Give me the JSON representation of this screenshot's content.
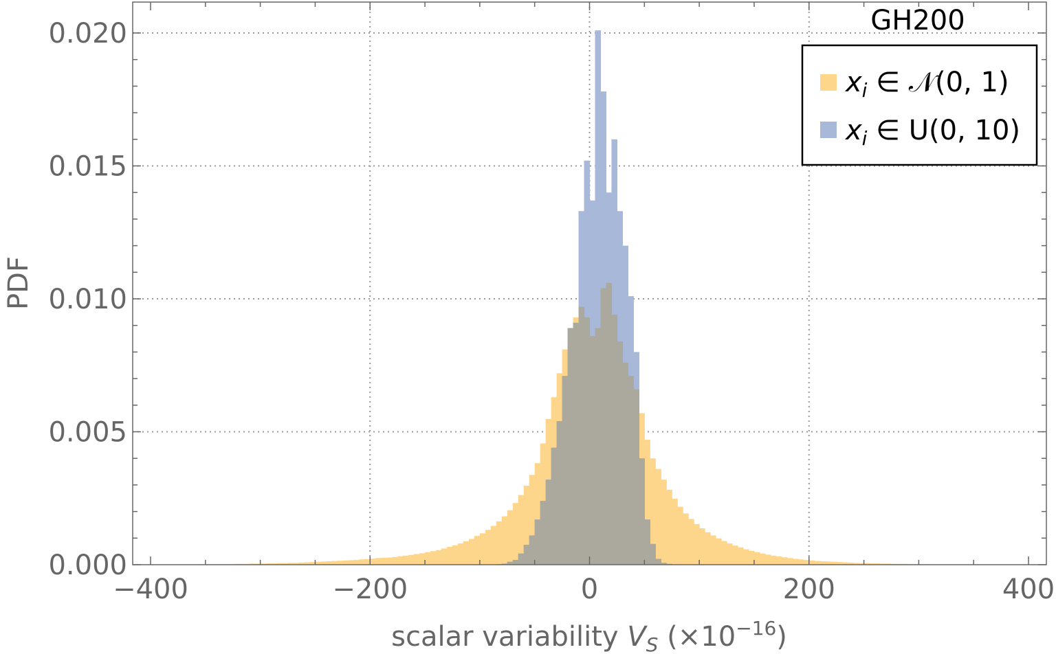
{
  "chart_data": {
    "type": "bar",
    "title": "GH200",
    "xlabel": {
      "prefix": "scalar variability ",
      "var": "V",
      "sub": "S",
      "unit_open": " (×10",
      "exp": "−16",
      "unit_close": ")"
    },
    "ylabel": "PDF",
    "xlim": [
      -400,
      400
    ],
    "ylim": [
      0,
      0.02
    ],
    "xticks": [
      -400,
      -200,
      0,
      200,
      400
    ],
    "xtick_labels": [
      "−400",
      "−200",
      "0",
      "200",
      "400"
    ],
    "yticks": [
      0,
      0.005,
      0.01,
      0.015,
      0.02
    ],
    "ytick_labels": [
      "0.000",
      "0.005",
      "0.010",
      "0.015",
      "0.020"
    ],
    "grid": true,
    "legend_position": "top-right",
    "bin_width": 5,
    "series": [
      {
        "name": "x_i ∈ 𝒩(0, 1)",
        "legend": {
          "var": "x",
          "sub": "i",
          "rest": " ∈ 𝒩(0, 1)"
        },
        "color": "#fdd68c",
        "bins_x": [
          -395,
          -390,
          -385,
          -380,
          -375,
          -370,
          -365,
          -360,
          -355,
          -350,
          -345,
          -340,
          -335,
          -330,
          -325,
          -320,
          -315,
          -310,
          -305,
          -300,
          -295,
          -290,
          -285,
          -280,
          -275,
          -270,
          -265,
          -260,
          -255,
          -250,
          -245,
          -240,
          -235,
          -230,
          -225,
          -220,
          -215,
          -210,
          -205,
          -200,
          -195,
          -190,
          -185,
          -180,
          -175,
          -170,
          -165,
          -160,
          -155,
          -150,
          -145,
          -140,
          -135,
          -130,
          -125,
          -120,
          -115,
          -110,
          -105,
          -100,
          -95,
          -90,
          -85,
          -80,
          -75,
          -70,
          -65,
          -60,
          -55,
          -50,
          -45,
          -40,
          -35,
          -30,
          -25,
          -20,
          -15,
          -10,
          -5,
          0,
          5,
          10,
          15,
          20,
          25,
          30,
          35,
          40,
          45,
          50,
          55,
          60,
          65,
          70,
          75,
          80,
          85,
          90,
          95,
          100,
          105,
          110,
          115,
          120,
          125,
          130,
          135,
          140,
          145,
          150,
          155,
          160,
          165,
          170,
          175,
          180,
          185,
          190,
          195,
          200,
          205,
          210,
          215,
          220,
          225,
          230,
          235,
          240,
          245,
          250,
          255,
          260,
          265,
          270,
          275,
          280,
          285,
          290,
          295,
          300,
          305
        ],
        "values": [
          1e-05,
          1e-05,
          1e-05,
          1e-05,
          1e-05,
          1e-05,
          1e-05,
          1e-05,
          2e-05,
          2e-05,
          2e-05,
          2e-05,
          2e-05,
          2e-05,
          3e-05,
          3e-05,
          3e-05,
          4e-05,
          4e-05,
          4e-05,
          5e-05,
          5e-05,
          6e-05,
          6e-05,
          7e-05,
          7e-05,
          8e-05,
          9e-05,
          0.0001,
          0.00011,
          0.00012,
          0.00013,
          0.00014,
          0.00015,
          0.00016,
          0.00017,
          0.00018,
          0.0002,
          0.00021,
          0.00023,
          0.00025,
          0.00026,
          0.00027,
          0.00029,
          0.00032,
          0.00034,
          0.00037,
          0.0004,
          0.00043,
          0.00047,
          0.00051,
          0.00055,
          0.00061,
          0.00067,
          0.00073,
          0.0008,
          0.00088,
          0.00097,
          0.00108,
          0.00118,
          0.00131,
          0.00146,
          0.00163,
          0.00182,
          0.00205,
          0.00232,
          0.00262,
          0.00297,
          0.00338,
          0.00382,
          0.00456,
          0.00548,
          0.0063,
          0.0072,
          0.0081,
          0.0089,
          0.0093,
          0.0097,
          0.0093,
          0.0086,
          0.0089,
          0.0104,
          0.0106,
          0.0094,
          0.0084,
          0.0076,
          0.0071,
          0.0066,
          0.0057,
          0.0047,
          0.004,
          0.0036,
          0.0032,
          0.00282,
          0.00248,
          0.00218,
          0.00193,
          0.00172,
          0.00153,
          0.00137,
          0.00122,
          0.0011,
          0.00099,
          0.00089,
          0.0008,
          0.00072,
          0.00065,
          0.00058,
          0.00052,
          0.00047,
          0.00042,
          0.00038,
          0.00034,
          0.00031,
          0.00028,
          0.00025,
          0.00022,
          0.0002,
          0.00018,
          0.00016,
          0.00014,
          0.00013,
          0.00012,
          0.00011,
          0.0001,
          9e-05,
          8e-05,
          7e-05,
          6e-05,
          6e-05,
          5e-05,
          5e-05,
          4e-05,
          4e-05,
          3e-05,
          3e-05,
          3e-05,
          2e-05,
          2e-05,
          2e-05,
          2e-05,
          1e-05
        ]
      },
      {
        "name": "x_i ∈ U(0, 10)",
        "legend": {
          "var": "x",
          "sub": "i",
          "rest": " ∈ U(0, 10)"
        },
        "color": "#a8b8d8",
        "bins_x": [
          -85,
          -80,
          -75,
          -70,
          -65,
          -60,
          -55,
          -50,
          -45,
          -40,
          -35,
          -30,
          -25,
          -20,
          -15,
          -10,
          -5,
          0,
          5,
          10,
          15,
          20,
          25,
          30,
          35,
          40,
          45,
          50,
          55,
          60,
          65,
          70,
          75
        ],
        "values": [
          2e-05,
          4e-05,
          0.00011,
          0.00018,
          0.00042,
          0.00075,
          0.0011,
          0.0017,
          0.0024,
          0.0032,
          0.0044,
          0.0054,
          0.0071,
          0.0089,
          0.0091,
          0.0133,
          0.0152,
          0.0137,
          0.0201,
          0.0178,
          0.014,
          0.016,
          0.0133,
          0.012,
          0.0101,
          0.008,
          0.004,
          0.0017,
          0.00078,
          0.00022,
          7e-05,
          3e-05,
          1e-05
        ]
      }
    ]
  }
}
